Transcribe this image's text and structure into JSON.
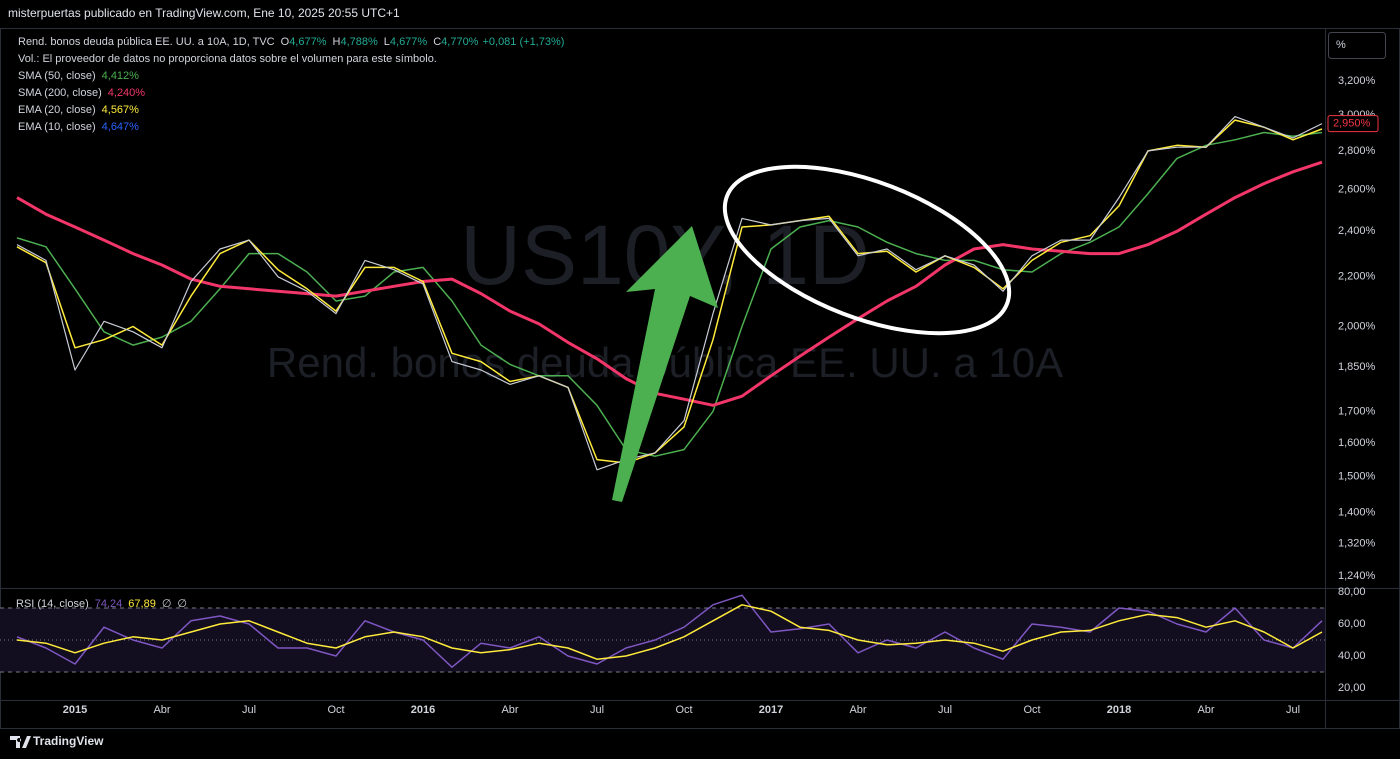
{
  "publisher": "misterpuertas publicado en TradingView.com, Ene 10, 2025 20:55 UTC+1",
  "scale_button": "%",
  "footer_brand": "TradingView",
  "chart_data": [
    {
      "type": "line",
      "title": "Rend. bonos deuda pública EE. UU. a 10A, 1D, TVC",
      "ohlc": [
        {
          "label": "O",
          "value": "4,677%"
        },
        {
          "label": "H",
          "value": "4,788%"
        },
        {
          "label": "L",
          "value": "4,677%"
        },
        {
          "label": "C",
          "value": "4,770%"
        }
      ],
      "change": "+0,081 (+1,73%)",
      "volume_note": "Vol.: El proveedor de datos no proporciona datos sobre el volumen para este símbolo.",
      "watermark": [
        "US10Y, 1D",
        "Rend. bonos deuda pública EE. UU. a 10A"
      ],
      "log_scale": true,
      "grid": false,
      "x": [
        "2014-11",
        "2014-12",
        "2015-01",
        "2015-02",
        "2015-03",
        "2015-04",
        "2015-05",
        "2015-06",
        "2015-07",
        "2015-08",
        "2015-09",
        "2015-10",
        "2015-11",
        "2015-12",
        "2016-01",
        "2016-02",
        "2016-03",
        "2016-04",
        "2016-05",
        "2016-06",
        "2016-07",
        "2016-08",
        "2016-09",
        "2016-10",
        "2016-11",
        "2016-12",
        "2017-01",
        "2017-02",
        "2017-03",
        "2017-04",
        "2017-05",
        "2017-06",
        "2017-07",
        "2017-08",
        "2017-09",
        "2017-10",
        "2017-11",
        "2017-12",
        "2018-01",
        "2018-02",
        "2018-03",
        "2018-04",
        "2018-05",
        "2018-06",
        "2018-07",
        "2018-08"
      ],
      "xlim": [
        "2014-10",
        "2018-08"
      ],
      "xticks": [
        {
          "value": "2015-01",
          "label": "2015"
        },
        {
          "value": "2015-04",
          "label": "Abr"
        },
        {
          "value": "2015-07",
          "label": "Jul"
        },
        {
          "value": "2015-10",
          "label": "Oct"
        },
        {
          "value": "2016-01",
          "label": "2016"
        },
        {
          "value": "2016-04",
          "label": "Abr"
        },
        {
          "value": "2016-07",
          "label": "Jul"
        },
        {
          "value": "2016-10",
          "label": "Oct"
        },
        {
          "value": "2017-01",
          "label": "2017"
        },
        {
          "value": "2017-04",
          "label": "Abr"
        },
        {
          "value": "2017-07",
          "label": "Jul"
        },
        {
          "value": "2017-10",
          "label": "Oct"
        },
        {
          "value": "2018-01",
          "label": "2018"
        },
        {
          "value": "2018-04",
          "label": "Abr"
        },
        {
          "value": "2018-07",
          "label": "Jul"
        }
      ],
      "ylim": [
        1.212,
        3.543
      ],
      "yticks": [
        {
          "value": 1.24,
          "label": "1,240%"
        },
        {
          "value": 1.32,
          "label": "1,320%"
        },
        {
          "value": 1.4,
          "label": "1,400%"
        },
        {
          "value": 1.5,
          "label": "1,500%"
        },
        {
          "value": 1.6,
          "label": "1,600%"
        },
        {
          "value": 1.7,
          "label": "1,700%"
        },
        {
          "value": 1.85,
          "label": "1,850%"
        },
        {
          "value": 2.0,
          "label": "2,000%"
        },
        {
          "value": 2.2,
          "label": "2,200%"
        },
        {
          "value": 2.4,
          "label": "2,400%"
        },
        {
          "value": 2.6,
          "label": "2,600%"
        },
        {
          "value": 2.8,
          "label": "2,800%"
        },
        {
          "value": 3.0,
          "label": "3,000%"
        },
        {
          "value": 3.2,
          "label": "3,200%"
        }
      ],
      "price": {
        "color": "#c8ccd6",
        "values": [
          2.34,
          2.27,
          1.84,
          2.02,
          1.98,
          1.92,
          2.18,
          2.32,
          2.36,
          2.2,
          2.14,
          2.05,
          2.27,
          2.23,
          2.17,
          1.87,
          1.84,
          1.79,
          1.82,
          1.78,
          1.52,
          1.55,
          1.57,
          1.67,
          2.05,
          2.46,
          2.43,
          2.45,
          2.46,
          2.29,
          2.32,
          2.23,
          2.29,
          2.25,
          2.14,
          2.29,
          2.36,
          2.36,
          2.56,
          2.8,
          2.82,
          2.82,
          2.99,
          2.93,
          2.87,
          2.95
        ],
        "last_value_label": "2,950%",
        "last_color": "#f23645"
      },
      "series": [
        {
          "name": "SMA (50, close)",
          "legend_value": "4,412%",
          "color": "#4caf50",
          "values": [
            2.37,
            2.33,
            2.15,
            1.98,
            1.93,
            1.96,
            2.02,
            2.15,
            2.3,
            2.3,
            2.22,
            2.1,
            2.12,
            2.22,
            2.24,
            2.1,
            1.93,
            1.86,
            1.82,
            1.82,
            1.72,
            1.58,
            1.56,
            1.58,
            1.7,
            2.0,
            2.32,
            2.42,
            2.45,
            2.42,
            2.35,
            2.3,
            2.27,
            2.27,
            2.23,
            2.22,
            2.3,
            2.35,
            2.42,
            2.58,
            2.76,
            2.83,
            2.86,
            2.9,
            2.88,
            2.9
          ]
        },
        {
          "name": "SMA (200, close)",
          "legend_value": "4,240%",
          "color": "#f23669",
          "values": [
            2.56,
            2.48,
            2.42,
            2.36,
            2.3,
            2.25,
            2.19,
            2.16,
            2.15,
            2.14,
            2.13,
            2.12,
            2.14,
            2.16,
            2.18,
            2.19,
            2.13,
            2.06,
            2.01,
            1.94,
            1.88,
            1.81,
            1.76,
            1.74,
            1.72,
            1.75,
            1.82,
            1.89,
            1.96,
            2.03,
            2.1,
            2.16,
            2.25,
            2.32,
            2.34,
            2.32,
            2.31,
            2.3,
            2.3,
            2.34,
            2.4,
            2.48,
            2.56,
            2.63,
            2.69,
            2.74
          ]
        },
        {
          "name": "EMA (20, close)",
          "legend_value": "4,567%",
          "color": "#ffeb3b",
          "values": [
            2.33,
            2.26,
            1.92,
            1.95,
            2.0,
            1.93,
            2.12,
            2.3,
            2.36,
            2.23,
            2.15,
            2.06,
            2.24,
            2.24,
            2.18,
            1.9,
            1.87,
            1.8,
            1.82,
            1.78,
            1.55,
            1.54,
            1.57,
            1.65,
            1.95,
            2.42,
            2.43,
            2.45,
            2.47,
            2.3,
            2.31,
            2.22,
            2.29,
            2.24,
            2.15,
            2.27,
            2.35,
            2.38,
            2.52,
            2.8,
            2.83,
            2.82,
            2.97,
            2.93,
            2.86,
            2.92
          ]
        },
        {
          "name": "EMA (10, close)",
          "legend_value": "4,647%",
          "color": "#2962ff"
        }
      ]
    },
    {
      "type": "line",
      "ylim": [
        12.5,
        82.5
      ],
      "yticks": [
        {
          "value": 80,
          "label": "80,00"
        },
        {
          "value": 60,
          "label": "60,00"
        },
        {
          "value": 40,
          "label": "40,00"
        },
        {
          "value": 20,
          "label": "20,00"
        }
      ],
      "hlines": [
        70,
        50,
        30
      ],
      "extra_labels": [
        "∅",
        "∅"
      ],
      "series": [
        {
          "name": "RSI (14, close)",
          "legend_value": "74,24",
          "color": "#7e57c2",
          "values": [
            52,
            45,
            35,
            58,
            50,
            45,
            62,
            65,
            60,
            45,
            45,
            40,
            62,
            55,
            50,
            33,
            48,
            45,
            52,
            40,
            35,
            45,
            50,
            58,
            72,
            78,
            55,
            57,
            60,
            42,
            50,
            45,
            55,
            45,
            38,
            60,
            58,
            55,
            70,
            68,
            60,
            55,
            70,
            50,
            45,
            62
          ]
        },
        {
          "legend_value": "67,89",
          "color": "#ffeb3b",
          "values": [
            50,
            48,
            42,
            48,
            52,
            50,
            55,
            60,
            62,
            55,
            48,
            45,
            52,
            55,
            52,
            45,
            42,
            44,
            48,
            45,
            38,
            40,
            45,
            52,
            62,
            72,
            68,
            58,
            56,
            50,
            47,
            48,
            50,
            48,
            43,
            50,
            55,
            56,
            62,
            66,
            64,
            58,
            62,
            55,
            45,
            55
          ]
        }
      ]
    }
  ]
}
